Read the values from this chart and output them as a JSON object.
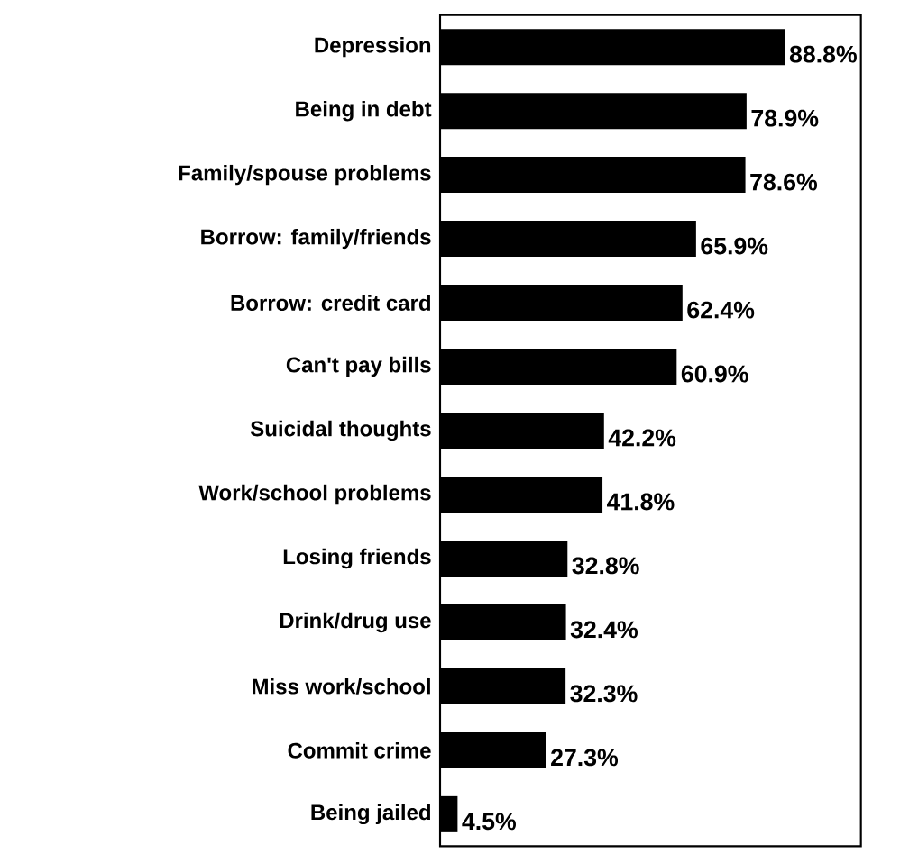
{
  "chart_data": {
    "type": "bar",
    "orientation": "horizontal",
    "categories": [
      "Depression",
      "Being in debt",
      "Family/spouse problems",
      "Borrow: family/friends",
      "Borrow: credit card",
      "Can't pay bills",
      "Suicidal thoughts",
      "Work/school problems",
      "Losing friends",
      "Drink/drug use",
      "Miss work/school",
      "Commit crime",
      "Being jailed"
    ],
    "values": [
      88.8,
      78.9,
      78.6,
      65.9,
      62.4,
      60.9,
      42.2,
      41.8,
      32.8,
      32.4,
      32.3,
      27.3,
      4.5
    ],
    "value_labels": [
      "88.8%",
      "78.9%",
      "78.6%",
      "65.9%",
      "62.4%",
      "60.9%",
      "42.2%",
      "41.8%",
      "32.8%",
      "32.4%",
      "32.3%",
      "27.3%",
      "4.5%"
    ],
    "color": "#000000"
  }
}
